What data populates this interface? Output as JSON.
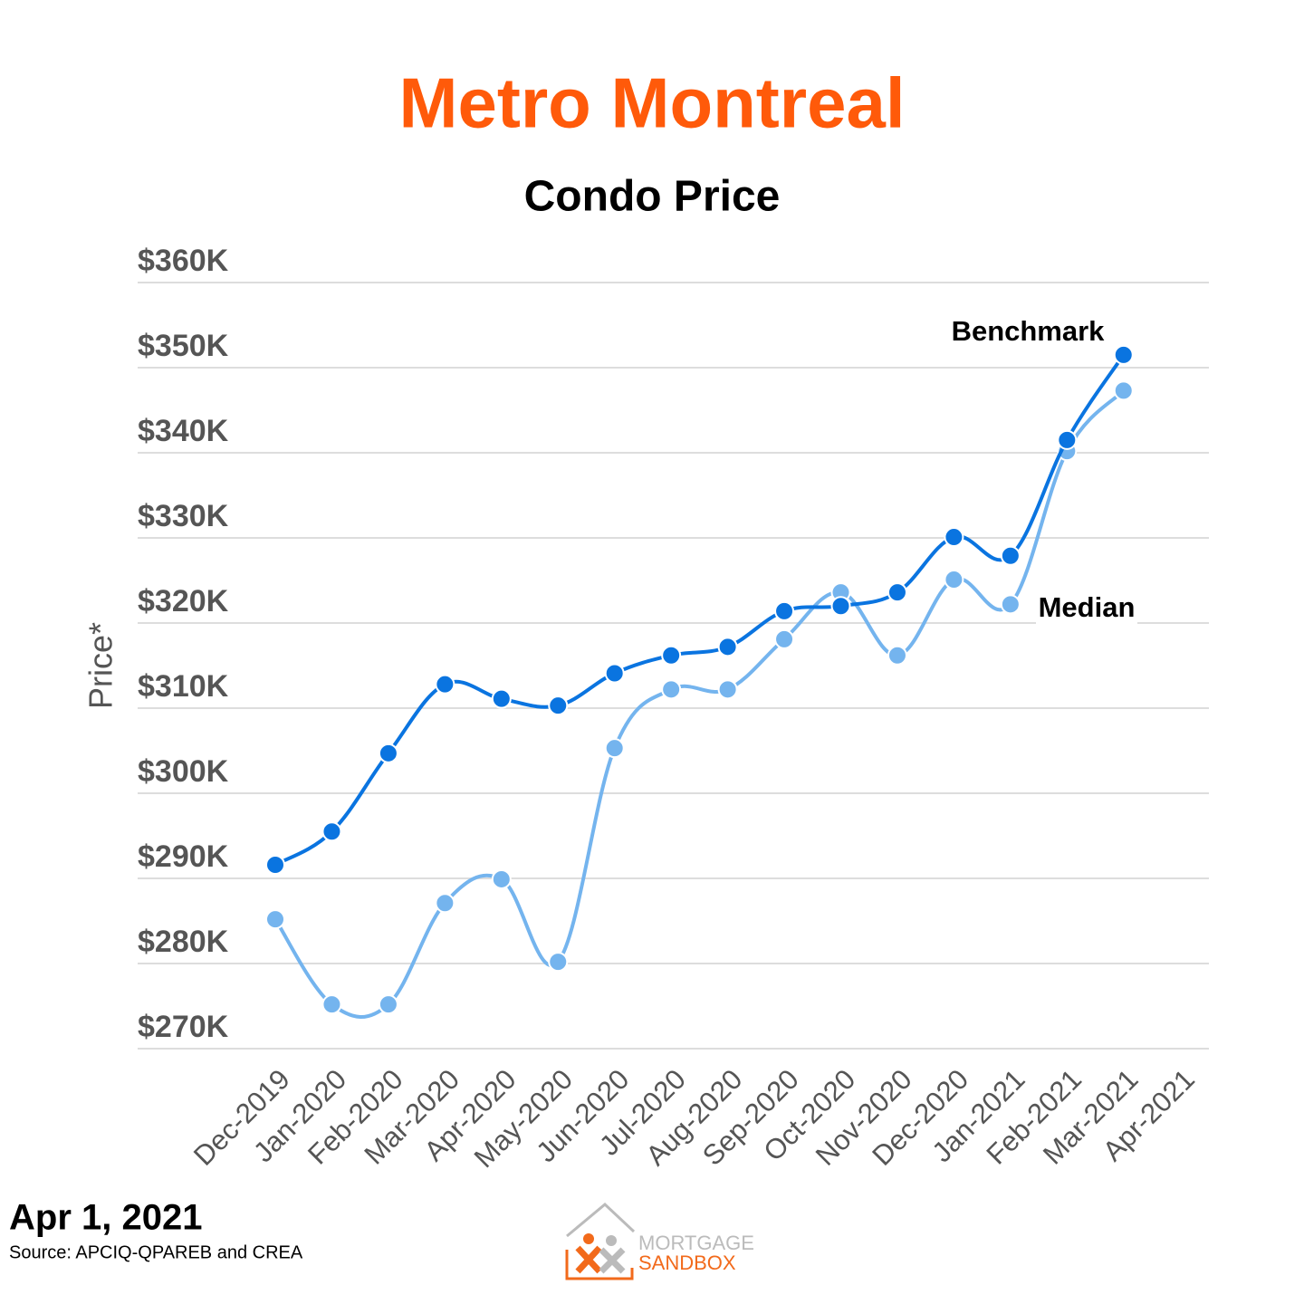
{
  "chart_data": {
    "type": "line",
    "title": "Metro Montreal",
    "subtitle": "Condo Price",
    "y_label": "Price*",
    "categories": [
      "Dec-2019",
      "Jan-2020",
      "Feb-2020",
      "Mar-2020",
      "Apr-2020",
      "May-2020",
      "Jun-2020",
      "Jul-2020",
      "Aug-2020",
      "Sep-2020",
      "Oct-2020",
      "Nov-2020",
      "Dec-2020",
      "Jan-2021",
      "Feb-2021",
      "Mar-2021",
      "Apr-2021"
    ],
    "series": [
      {
        "name": "Median",
        "color": "#74b4ee",
        "values": [
          285200,
          275200,
          275200,
          287100,
          289900,
          280200,
          305300,
          312200,
          312200,
          318100,
          323600,
          316200,
          325100,
          322200,
          340200,
          347300,
          null
        ]
      },
      {
        "name": "Benchmark",
        "color": "#0a74e0",
        "values": [
          291600,
          295500,
          304700,
          312800,
          311100,
          310300,
          314100,
          316200,
          317200,
          321400,
          322000,
          323600,
          330100,
          327900,
          341500,
          351500,
          null
        ]
      }
    ],
    "ylim": [
      270000,
      360000
    ],
    "yticks": [
      {
        "value": 270000,
        "label": "$270K"
      },
      {
        "value": 280000,
        "label": "$280K"
      },
      {
        "value": 290000,
        "label": "$290K"
      },
      {
        "value": 300000,
        "label": "$300K"
      },
      {
        "value": 310000,
        "label": "$310K"
      },
      {
        "value": 320000,
        "label": "$320K"
      },
      {
        "value": 330000,
        "label": "$330K"
      },
      {
        "value": 340000,
        "label": "$340K"
      },
      {
        "value": 350000,
        "label": "$350K"
      },
      {
        "value": 360000,
        "label": "$360K"
      }
    ],
    "grid": true,
    "title_color": "#ff5a0a"
  },
  "footer": {
    "date": "Apr 1, 2021",
    "source": "Source: APCIQ-QPAREB and CREA"
  },
  "logo": {
    "line1": "MORTGAGE",
    "line2": "SANDBOX"
  }
}
